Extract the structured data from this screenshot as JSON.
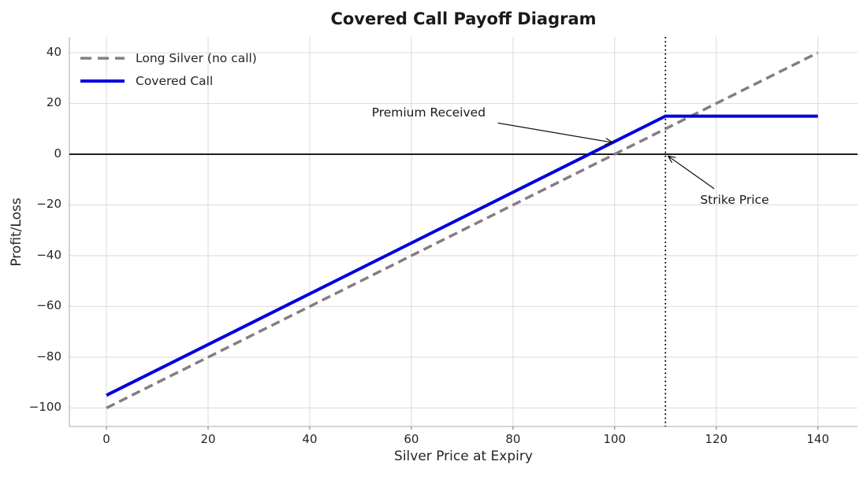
{
  "chart_data": {
    "type": "line",
    "title": "Covered Call Payoff Diagram",
    "xlabel": "Silver Price at Expiry",
    "ylabel": "Profit/Loss",
    "xlim": [
      -7.3,
      147.8
    ],
    "ylim": [
      -107.3,
      46.2
    ],
    "xticks": [
      0,
      20,
      40,
      60,
      80,
      100,
      120,
      140
    ],
    "yticks": [
      -100,
      -80,
      -60,
      -40,
      -20,
      0,
      20,
      40
    ],
    "grid": true,
    "grid_color": "#dedede",
    "spine_color": "#bcbcbc",
    "legend": {
      "position": "upper-left",
      "entries": [
        {
          "label": "Long Silver (no call)",
          "color": "#808080",
          "style": "dashed"
        },
        {
          "label": "Covered Call",
          "color": "#0000dd",
          "style": "solid"
        }
      ]
    },
    "series": [
      {
        "name": "Long Silver (no call)",
        "color": "#808080",
        "style": "dashed",
        "linewidth": 3.5,
        "points": [
          [
            0,
            -100
          ],
          [
            140,
            40
          ]
        ]
      },
      {
        "name": "Covered Call",
        "color": "#0000dd",
        "style": "solid",
        "linewidth": 4,
        "points": [
          [
            0,
            -95
          ],
          [
            110,
            15
          ],
          [
            140,
            15
          ]
        ]
      }
    ],
    "reference_lines": [
      {
        "orientation": "horizontal",
        "value": 0,
        "color": "#000000",
        "style": "solid",
        "linewidth": 1.8
      },
      {
        "orientation": "vertical",
        "value": 110,
        "color": "#000000",
        "style": "dotted",
        "linewidth": 1.8
      }
    ],
    "annotations": [
      {
        "text": "Premium Received",
        "text_center": [
          63.4,
          16.3
        ],
        "arrow_from": [
          77.0,
          12.3
        ],
        "arrow_to": [
          99.6,
          4.6
        ]
      },
      {
        "text": "Strike Price",
        "text_center": [
          123.6,
          -18.0
        ],
        "arrow_from": [
          119.6,
          -13.6
        ],
        "arrow_to": [
          110.5,
          -0.7
        ]
      }
    ]
  }
}
